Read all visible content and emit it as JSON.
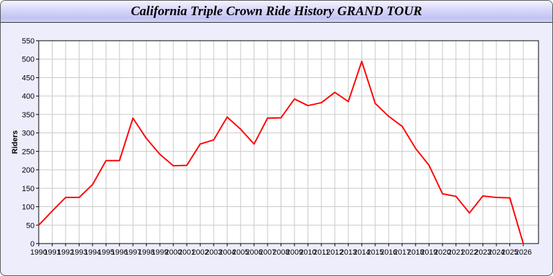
{
  "chart_data": {
    "type": "line",
    "title": "California Triple Crown Ride History GRAND TOUR",
    "xlabel": "",
    "ylabel": "Riders",
    "ylim": [
      0,
      550
    ],
    "yticks": [
      0,
      50,
      100,
      150,
      200,
      250,
      300,
      350,
      400,
      450,
      500,
      550
    ],
    "grid": true,
    "x": [
      1990,
      1991,
      1992,
      1993,
      1994,
      1995,
      1996,
      1997,
      1998,
      1999,
      2000,
      2001,
      2002,
      2003,
      2004,
      2005,
      2006,
      2007,
      2008,
      2009,
      2010,
      2011,
      2012,
      2013,
      2014,
      2015,
      2016,
      2017,
      2018,
      2019,
      2020,
      2021,
      2022,
      2023,
      2024,
      2025,
      2026
    ],
    "series": [
      {
        "color": "#ff0000",
        "values": [
          50,
          88,
          125,
          125,
          160,
          225,
          225,
          340,
          285,
          242,
          211,
          212,
          270,
          281,
          343,
          310,
          270,
          340,
          341,
          392,
          374,
          382,
          410,
          385,
          494,
          380,
          345,
          318,
          258,
          212,
          135,
          128,
          83,
          129,
          125,
          124,
          0
        ]
      }
    ]
  }
}
